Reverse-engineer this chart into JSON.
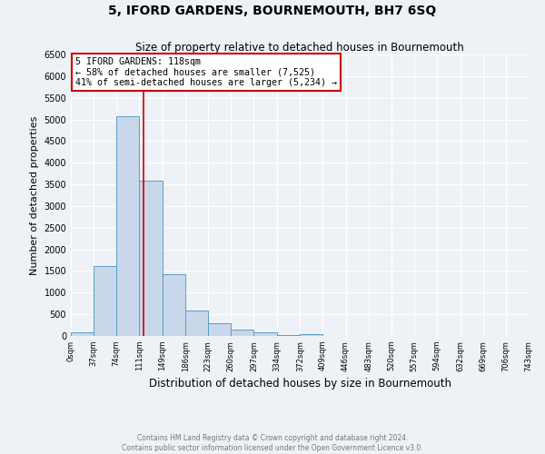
{
  "title": "5, IFORD GARDENS, BOURNEMOUTH, BH7 6SQ",
  "subtitle": "Size of property relative to detached houses in Bournemouth",
  "xlabel": "Distribution of detached houses by size in Bournemouth",
  "ylabel": "Number of detached properties",
  "bin_edges": [
    0,
    37,
    74,
    111,
    149,
    186,
    223,
    260,
    297,
    334,
    372,
    409,
    446,
    483,
    520,
    557,
    594,
    632,
    669,
    706,
    743
  ],
  "counts": [
    75,
    1625,
    5080,
    3580,
    1420,
    590,
    300,
    145,
    75,
    30,
    50,
    0,
    0,
    0,
    0,
    0,
    0,
    0,
    0,
    0
  ],
  "bar_color": "#c8d8ea",
  "bar_edge_color": "#5a9dc8",
  "red_line_x": 118,
  "annotation_title": "5 IFORD GARDENS: 118sqm",
  "annotation_line1": "← 58% of detached houses are smaller (7,525)",
  "annotation_line2": "41% of semi-detached houses are larger (5,234) →",
  "annotation_box_color": "#ffffff",
  "annotation_box_edge": "#cc0000",
  "red_line_color": "#cc0000",
  "ylim": [
    0,
    6500
  ],
  "yticks": [
    0,
    500,
    1000,
    1500,
    2000,
    2500,
    3000,
    3500,
    4000,
    4500,
    5000,
    5500,
    6000,
    6500
  ],
  "background_color": "#eef2f7",
  "grid_color": "#ffffff",
  "footer_line1": "Contains HM Land Registry data © Crown copyright and database right 2024.",
  "footer_line2": "Contains public sector information licensed under the Open Government Licence v3.0."
}
